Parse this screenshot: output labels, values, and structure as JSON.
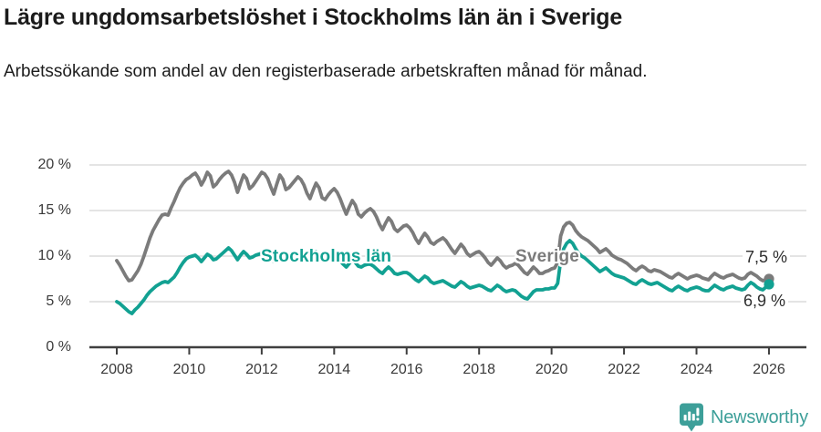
{
  "header": {
    "title": "Lägre ungdomsarbetslöshet i Stockholms län än i Sverige",
    "subtitle": "Arbetssökande som andel av den registerbaserade arbetskraften månad för månad."
  },
  "footer": {
    "brand": "Newsworthy",
    "brand_color": "#3d9f99",
    "logo_icon": "newsworthy-pin-barchart-icon"
  },
  "chart_data": {
    "type": "line",
    "title": "Lägre ungdomsarbetslöshet i Stockholms län än i Sverige",
    "unit": "%",
    "grid": true,
    "x_axis": {
      "start_year": 2008,
      "end_year": 2026,
      "interval": "monthly",
      "tick_labels": [
        "2008",
        "2010",
        "2012",
        "2014",
        "2016",
        "2018",
        "2020",
        "2022",
        "2024",
        "2026"
      ]
    },
    "y_axis": {
      "ylim": [
        0,
        20
      ],
      "tick_values": [
        20,
        15,
        10,
        5,
        0
      ],
      "tick_labels": [
        "20 %",
        "15 %",
        "10 %",
        "5 %",
        "0 %"
      ]
    },
    "series": [
      {
        "name": "Sverige",
        "color": "#7b7b7b",
        "end_label": "7,5 %",
        "end_value": 7.5,
        "values": [
          9.5,
          9.0,
          8.4,
          7.8,
          7.3,
          7.4,
          7.9,
          8.4,
          9.1,
          10.0,
          11.0,
          12.0,
          12.8,
          13.4,
          14.0,
          14.5,
          14.6,
          14.5,
          15.3,
          16.0,
          16.8,
          17.5,
          18.0,
          18.4,
          18.6,
          18.9,
          19.1,
          18.6,
          17.8,
          18.4,
          19.2,
          18.8,
          17.6,
          17.9,
          18.4,
          18.8,
          19.1,
          19.3,
          18.9,
          18.1,
          17.0,
          18.0,
          18.9,
          18.5,
          17.4,
          17.7,
          18.2,
          18.7,
          19.2,
          19.0,
          18.5,
          17.6,
          16.8,
          17.9,
          18.9,
          18.4,
          17.3,
          17.5,
          17.9,
          18.3,
          18.7,
          18.4,
          17.8,
          16.9,
          16.3,
          17.2,
          18.0,
          17.5,
          16.4,
          16.2,
          16.7,
          17.1,
          17.4,
          17.0,
          16.3,
          15.4,
          14.6,
          15.4,
          16.1,
          15.6,
          14.6,
          14.3,
          14.7,
          15.0,
          15.2,
          14.9,
          14.3,
          13.5,
          12.9,
          13.6,
          14.2,
          13.8,
          13.0,
          12.7,
          13.0,
          13.3,
          13.4,
          13.1,
          12.6,
          11.9,
          11.4,
          12.0,
          12.5,
          12.1,
          11.5,
          11.3,
          11.6,
          11.8,
          12.0,
          11.7,
          11.2,
          10.7,
          10.3,
          10.8,
          11.3,
          10.9,
          10.3,
          10.0,
          10.2,
          10.4,
          10.5,
          10.2,
          9.8,
          9.3,
          9.0,
          9.4,
          9.8,
          9.5,
          9.0,
          8.7,
          8.9,
          9.0,
          9.2,
          9.0,
          8.6,
          8.2,
          8.0,
          8.4,
          8.8,
          8.5,
          8.1,
          8.1,
          8.3,
          8.4,
          8.6,
          8.7,
          9.3,
          12.2,
          13.2,
          13.6,
          13.7,
          13.4,
          12.8,
          12.4,
          12.1,
          11.9,
          11.7,
          11.4,
          11.1,
          10.8,
          10.4,
          10.6,
          10.8,
          10.5,
          10.1,
          9.9,
          9.7,
          9.6,
          9.4,
          9.2,
          8.9,
          8.6,
          8.4,
          8.7,
          8.9,
          8.7,
          8.4,
          8.3,
          8.5,
          8.4,
          8.3,
          8.1,
          7.9,
          7.7,
          7.6,
          7.9,
          8.1,
          7.9,
          7.7,
          7.5,
          7.7,
          7.8,
          7.9,
          7.8,
          7.6,
          7.5,
          7.4,
          7.8,
          8.1,
          7.9,
          7.7,
          7.6,
          7.8,
          7.9,
          8.0,
          7.8,
          7.6,
          7.5,
          7.6,
          8.0,
          8.2,
          8.0,
          7.8,
          7.5,
          7.3,
          7.4,
          7.5
        ]
      },
      {
        "name": "Stockholms län",
        "color": "#12a192",
        "end_label": "6,9 %",
        "end_value": 6.9,
        "values": [
          5.0,
          4.8,
          4.5,
          4.2,
          3.9,
          3.7,
          4.1,
          4.4,
          4.8,
          5.2,
          5.7,
          6.1,
          6.4,
          6.7,
          6.9,
          7.1,
          7.2,
          7.1,
          7.4,
          7.7,
          8.2,
          8.8,
          9.3,
          9.7,
          9.9,
          10.0,
          10.1,
          9.8,
          9.4,
          9.8,
          10.2,
          10.0,
          9.6,
          9.7,
          10.0,
          10.3,
          10.6,
          10.9,
          10.6,
          10.1,
          9.6,
          10.1,
          10.5,
          10.2,
          9.8,
          9.9,
          10.1,
          10.2,
          10.3,
          10.2,
          10.0,
          9.7,
          9.4,
          9.9,
          10.3,
          10.1,
          9.7,
          9.8,
          10.0,
          10.1,
          10.3,
          10.2,
          10.0,
          9.7,
          9.5,
          10.0,
          10.5,
          10.2,
          9.8,
          9.7,
          9.8,
          9.9,
          10.0,
          9.8,
          9.5,
          9.1,
          8.8,
          9.2,
          9.6,
          9.3,
          8.9,
          8.8,
          9.0,
          9.1,
          9.1,
          8.9,
          8.6,
          8.3,
          8.1,
          8.5,
          8.8,
          8.5,
          8.1,
          8.0,
          8.1,
          8.2,
          8.2,
          8.0,
          7.7,
          7.4,
          7.2,
          7.5,
          7.8,
          7.6,
          7.2,
          7.0,
          7.1,
          7.2,
          7.3,
          7.1,
          6.9,
          6.7,
          6.6,
          6.9,
          7.2,
          7.0,
          6.7,
          6.5,
          6.6,
          6.7,
          6.8,
          6.7,
          6.5,
          6.3,
          6.2,
          6.5,
          6.8,
          6.6,
          6.3,
          6.1,
          6.2,
          6.3,
          6.2,
          5.9,
          5.6,
          5.4,
          5.3,
          5.7,
          6.1,
          6.3,
          6.3,
          6.3,
          6.4,
          6.4,
          6.5,
          6.5,
          7.0,
          9.5,
          10.8,
          11.4,
          11.7,
          11.4,
          10.8,
          10.3,
          10.0,
          9.8,
          9.5,
          9.2,
          8.9,
          8.6,
          8.3,
          8.5,
          8.7,
          8.4,
          8.1,
          7.9,
          7.8,
          7.7,
          7.6,
          7.4,
          7.2,
          7.0,
          6.9,
          7.2,
          7.4,
          7.2,
          7.0,
          6.9,
          7.0,
          7.1,
          6.9,
          6.7,
          6.5,
          6.3,
          6.2,
          6.5,
          6.7,
          6.5,
          6.3,
          6.2,
          6.4,
          6.5,
          6.6,
          6.5,
          6.3,
          6.2,
          6.2,
          6.5,
          6.8,
          6.6,
          6.4,
          6.3,
          6.5,
          6.6,
          6.7,
          6.5,
          6.4,
          6.3,
          6.4,
          6.8,
          7.1,
          6.9,
          6.6,
          6.4,
          6.3,
          6.6,
          6.9
        ]
      }
    ]
  }
}
